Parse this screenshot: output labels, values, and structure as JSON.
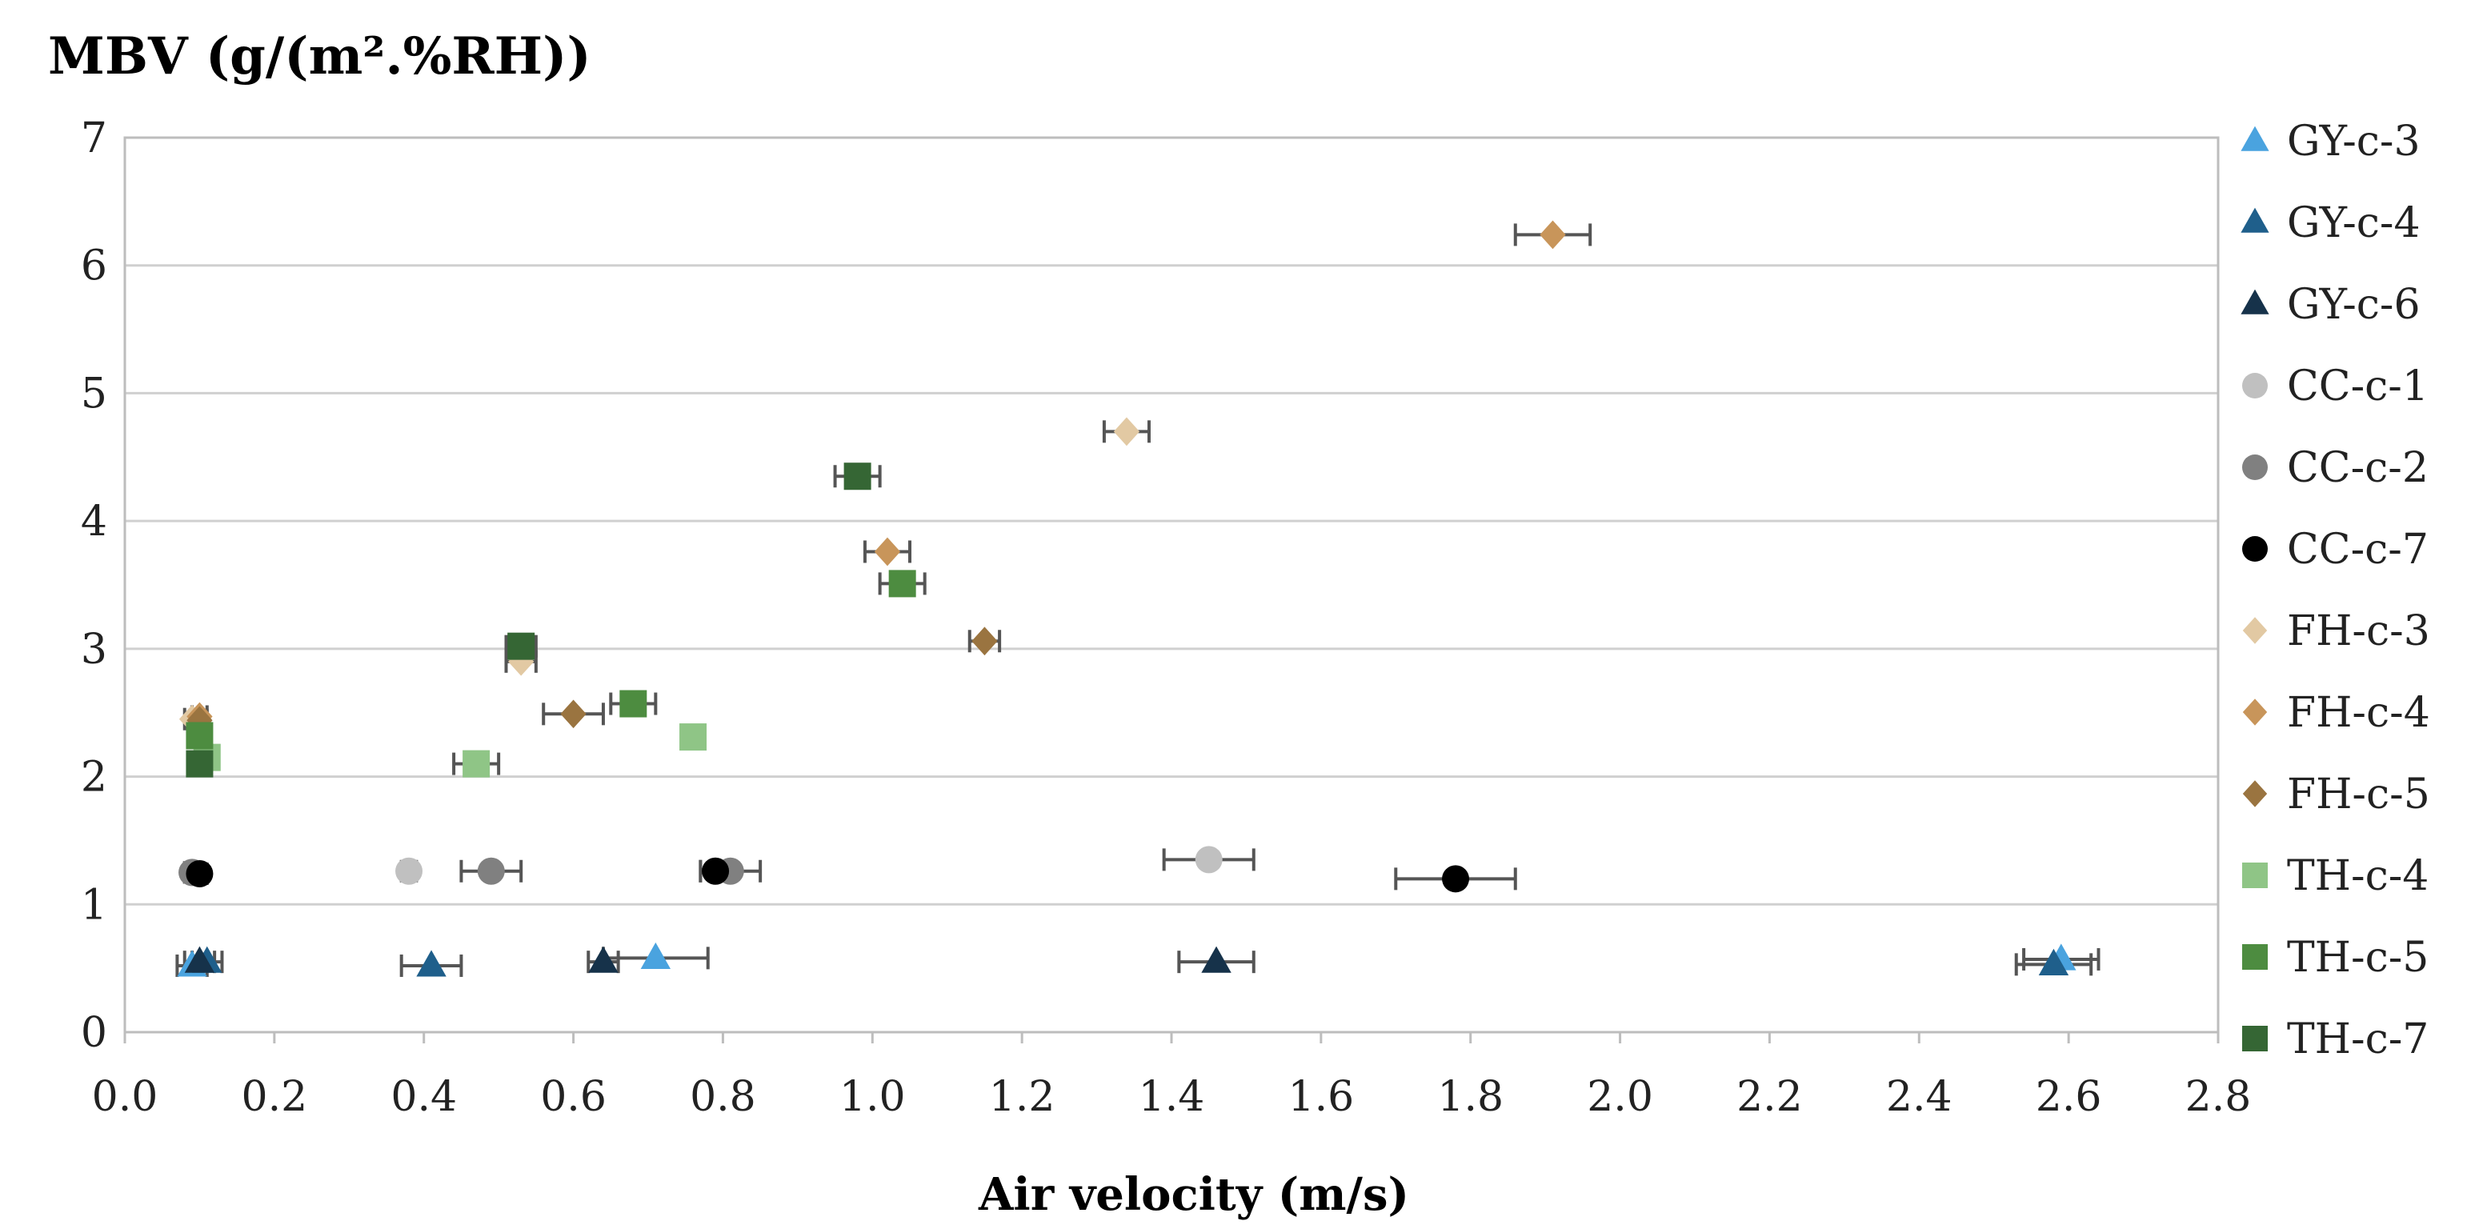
{
  "chart_data": {
    "type": "scatter",
    "title": "",
    "ylabel": "MBV (g/(m².%RH))",
    "xlabel": "Air velocity (m/s)",
    "xlim": [
      0.0,
      2.8
    ],
    "ylim": [
      0,
      7
    ],
    "x_ticks": [
      "0.0",
      "0.2",
      "0.4",
      "0.6",
      "0.8",
      "1.0",
      "1.2",
      "1.4",
      "1.6",
      "1.8",
      "2.0",
      "2.2",
      "2.4",
      "2.6",
      "2.8"
    ],
    "y_ticks": [
      "0",
      "1",
      "2",
      "3",
      "4",
      "5",
      "6",
      "7"
    ],
    "grid": "horizontal",
    "legend_position": "right",
    "series": [
      {
        "name": "GY-c-3",
        "marker": "triangle",
        "color": "#4aa3df",
        "points": [
          {
            "x": 0.09,
            "y": 0.52,
            "xerr": 0.02
          },
          {
            "x": 0.71,
            "y": 0.58,
            "xerr": 0.07
          },
          {
            "x": 2.59,
            "y": 0.57,
            "xerr": 0.05
          }
        ]
      },
      {
        "name": "GY-c-4",
        "marker": "triangle",
        "color": "#1f5f8b",
        "points": [
          {
            "x": 0.11,
            "y": 0.55,
            "xerr": 0.02
          },
          {
            "x": 0.41,
            "y": 0.52,
            "xerr": 0.04
          },
          {
            "x": 2.58,
            "y": 0.53,
            "xerr": 0.05
          }
        ]
      },
      {
        "name": "GY-c-6",
        "marker": "triangle",
        "color": "#16324a",
        "points": [
          {
            "x": 0.1,
            "y": 0.55,
            "xerr": 0.02
          },
          {
            "x": 0.64,
            "y": 0.55,
            "xerr": 0.02
          },
          {
            "x": 1.46,
            "y": 0.55,
            "xerr": 0.05
          }
        ]
      },
      {
        "name": "CC-c-1",
        "marker": "circle",
        "color": "#c0c0c0",
        "points": [
          {
            "x": 0.09,
            "y": 1.25,
            "xerr": 0.01
          },
          {
            "x": 0.38,
            "y": 1.26,
            "xerr": 0.01
          },
          {
            "x": 1.45,
            "y": 1.35,
            "xerr": 0.06
          }
        ]
      },
      {
        "name": "CC-c-2",
        "marker": "circle",
        "color": "#808080",
        "points": [
          {
            "x": 0.09,
            "y": 1.25,
            "xerr": 0.01
          },
          {
            "x": 0.49,
            "y": 1.26,
            "xerr": 0.04
          },
          {
            "x": 0.81,
            "y": 1.26,
            "xerr": 0.04
          }
        ]
      },
      {
        "name": "CC-c-7",
        "marker": "circle",
        "color": "#000000",
        "points": [
          {
            "x": 0.1,
            "y": 1.24,
            "xerr": 0.01
          },
          {
            "x": 0.79,
            "y": 1.26,
            "xerr": 0.02
          },
          {
            "x": 1.78,
            "y": 1.2,
            "xerr": 0.08
          }
        ]
      },
      {
        "name": "FH-c-3",
        "marker": "diamond",
        "color": "#e2c9a3",
        "points": [
          {
            "x": 0.09,
            "y": 2.45,
            "xerr": 0.01
          },
          {
            "x": 0.53,
            "y": 2.9,
            "xerr": 0.02
          },
          {
            "x": 1.34,
            "y": 4.7,
            "xerr": 0.03
          }
        ]
      },
      {
        "name": "FH-c-4",
        "marker": "diamond",
        "color": "#c8955a",
        "points": [
          {
            "x": 0.1,
            "y": 2.47,
            "xerr": 0.01
          },
          {
            "x": 1.02,
            "y": 3.76,
            "xerr": 0.03
          },
          {
            "x": 1.91,
            "y": 6.24,
            "xerr": 0.05
          }
        ]
      },
      {
        "name": "FH-c-5",
        "marker": "diamond",
        "color": "#9a7440",
        "points": [
          {
            "x": 0.1,
            "y": 2.44,
            "xerr": 0.01
          },
          {
            "x": 0.6,
            "y": 2.49,
            "xerr": 0.04
          },
          {
            "x": 1.15,
            "y": 3.06,
            "xerr": 0.02
          }
        ]
      },
      {
        "name": "TH-c-4",
        "marker": "square",
        "color": "#8fc586",
        "points": [
          {
            "x": 0.11,
            "y": 2.15,
            "xerr": 0.01
          },
          {
            "x": 0.47,
            "y": 2.1,
            "xerr": 0.03
          },
          {
            "x": 0.76,
            "y": 2.31,
            "xerr": 0.01
          }
        ]
      },
      {
        "name": "TH-c-5",
        "marker": "square",
        "color": "#4d8c40",
        "points": [
          {
            "x": 0.1,
            "y": 2.32,
            "xerr": 0.01
          },
          {
            "x": 0.68,
            "y": 2.57,
            "xerr": 0.03
          },
          {
            "x": 1.04,
            "y": 3.51,
            "xerr": 0.03
          }
        ]
      },
      {
        "name": "TH-c-7",
        "marker": "square",
        "color": "#356634",
        "points": [
          {
            "x": 0.1,
            "y": 2.1,
            "xerr": 0.01
          },
          {
            "x": 0.53,
            "y": 3.02,
            "xerr": 0.02
          },
          {
            "x": 0.98,
            "y": 4.35,
            "xerr": 0.03
          }
        ]
      }
    ]
  }
}
